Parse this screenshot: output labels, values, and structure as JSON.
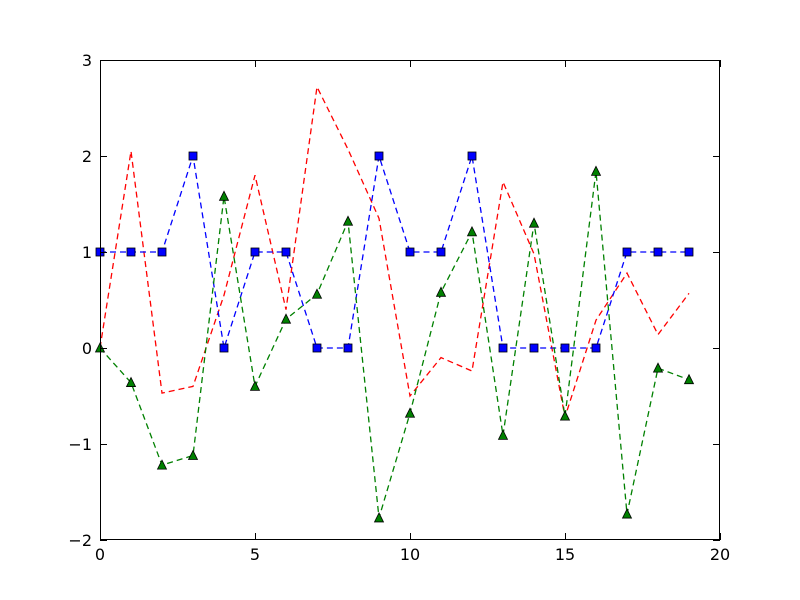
{
  "chart_data": {
    "type": "line",
    "title": "",
    "xlabel": "",
    "ylabel": "",
    "xlim": [
      0,
      20
    ],
    "ylim": [
      -2,
      3
    ],
    "xticks": [
      0,
      5,
      10,
      15,
      20
    ],
    "yticks": [
      -2,
      -1,
      0,
      1,
      2,
      3
    ],
    "xtick_labels": [
      "0",
      "5",
      "10",
      "15",
      "20"
    ],
    "ytick_labels": [
      "−2",
      "−1",
      "0",
      "1",
      "2",
      "3"
    ],
    "grid": false,
    "legend": "none",
    "series": [
      {
        "color": "#ff0000",
        "line_style": "dashed",
        "marker": "none",
        "x": [
          0,
          1,
          2,
          3,
          4,
          5,
          6,
          7,
          8,
          9,
          10,
          11,
          12,
          13,
          14,
          15,
          16,
          17,
          18,
          19
        ],
        "y": [
          0.0,
          2.05,
          -0.47,
          -0.4,
          0.55,
          1.8,
          0.4,
          2.72,
          2.07,
          1.35,
          -0.5,
          -0.1,
          -0.24,
          1.73,
          0.98,
          -0.72,
          0.29,
          0.78,
          0.14,
          0.57
        ]
      },
      {
        "color": "#0000ff",
        "line_style": "dashed",
        "marker": "square",
        "x": [
          0,
          1,
          2,
          3,
          4,
          5,
          6,
          7,
          8,
          9,
          10,
          11,
          12,
          13,
          14,
          15,
          16,
          17,
          18,
          19
        ],
        "y": [
          1,
          1,
          1,
          2,
          0,
          1,
          1,
          0,
          0,
          2,
          1,
          1,
          2,
          0,
          0,
          0,
          0,
          1,
          1,
          1
        ]
      },
      {
        "color": "#008000",
        "line_style": "dashed",
        "marker": "triangle",
        "x": [
          0,
          1,
          2,
          3,
          4,
          5,
          6,
          7,
          8,
          9,
          10,
          11,
          12,
          13,
          14,
          15,
          16,
          17,
          18,
          19
        ],
        "y": [
          0.0,
          -0.36,
          -1.22,
          -1.12,
          1.58,
          -0.4,
          0.3,
          0.56,
          1.32,
          -1.77,
          -0.68,
          0.58,
          1.21,
          -0.91,
          1.3,
          -0.71,
          1.84,
          -1.73,
          -0.21,
          -0.33
        ]
      }
    ]
  }
}
